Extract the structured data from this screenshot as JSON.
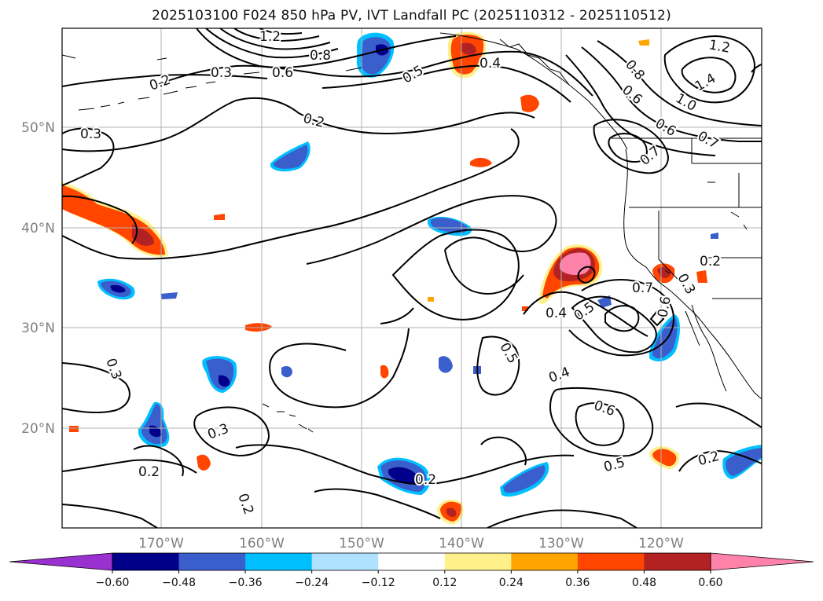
{
  "title": "2025103100 F024 850 hPa PV, IVT Landfall PC (2025110312 - 2025110512)",
  "lat_labels": [
    "50°N",
    "40°N",
    "30°N",
    "20°N"
  ],
  "lon_labels": [
    "170°W",
    "160°W",
    "150°W",
    "140°W",
    "130°W",
    "120°W"
  ],
  "contour_labels": [
    "1.2",
    "0.8",
    "0.3",
    "0.6",
    "0.5",
    "0.4",
    "1.2",
    "0.8",
    "1.4",
    "0.6",
    "1.0",
    "0.2",
    "0.2",
    "0.3",
    "0.6",
    "0.7",
    "0.7",
    "0.7",
    "0.6",
    "0.4",
    "0.5",
    "0.5",
    "0.4",
    "0.6",
    "0.5",
    "0.3",
    "0.3",
    "0.2",
    "0.2",
    "0.2",
    "0.2",
    "0.2",
    "0.3"
  ],
  "colorbar": {
    "ticks": [
      "−0.60",
      "−0.48",
      "−0.36",
      "−0.24",
      "−0.12",
      "0.12",
      "0.24",
      "0.36",
      "0.48",
      "0.60"
    ],
    "colors": [
      "#9b30d0",
      "#00008b",
      "#3a5fcd",
      "#00bfff",
      "#b0e2ff",
      "#ffffff",
      "#fff08c",
      "#ffa500",
      "#ff4500",
      "#b22222",
      "#ff82ab",
      "#ff82ab"
    ]
  },
  "map": {
    "lon_range": [
      "180°W",
      "110°W"
    ],
    "lat_range": [
      "10°N",
      "60°N"
    ],
    "contour_color": "#000000",
    "grid_color": "#b0b0b0"
  }
}
